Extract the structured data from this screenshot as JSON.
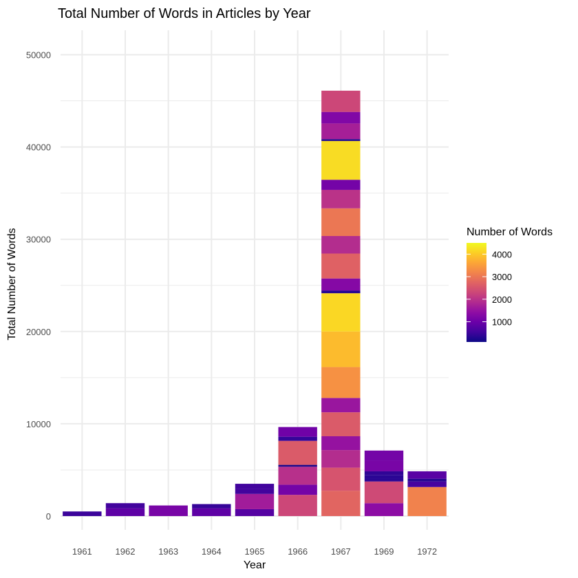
{
  "chart_data": {
    "type": "bar",
    "stacked": true,
    "title": "Total Number of Words in Articles by Year",
    "xlabel": "Year",
    "ylabel": "Total Number of Words",
    "ylim": [
      0,
      52500
    ],
    "y_ticks": [
      0,
      10000,
      20000,
      30000,
      40000,
      50000
    ],
    "y_tick_labels": [
      "0",
      "10000",
      "20000",
      "30000",
      "40000",
      "50000"
    ],
    "grid": true,
    "categories": [
      "1961",
      "1962",
      "1963",
      "1964",
      "1965",
      "1966",
      "1967",
      "1969",
      "1972"
    ],
    "segments": {
      "1961": [
        500
      ],
      "1962": [
        850,
        550
      ],
      "1963": [
        1150
      ],
      "1964": [
        850,
        450
      ],
      "1965": [
        750,
        1650,
        550,
        550
      ],
      "1966": [
        2300,
        1100,
        1950,
        200,
        2600,
        450,
        1050
      ],
      "1967": [
        2750,
        2500,
        1900,
        1500,
        2600,
        1550,
        3350,
        3850,
        4150,
        300,
        1300,
        2700,
        1900,
        3000,
        2000,
        1100,
        4200,
        200,
        1700,
        1250,
        2300
      ],
      "1969": [
        1400,
        2350,
        350,
        350,
        400,
        1150,
        1100
      ],
      "1972": [
        3150,
        600,
        300,
        800
      ]
    },
    "legend": {
      "title": "Number of Words",
      "position": "right",
      "colormap": "plasma",
      "range": [
        100,
        4500
      ],
      "ticks": [
        1000,
        2000,
        3000,
        4000
      ],
      "tick_labels": [
        "1000",
        "2000",
        "3000",
        "4000"
      ]
    }
  }
}
